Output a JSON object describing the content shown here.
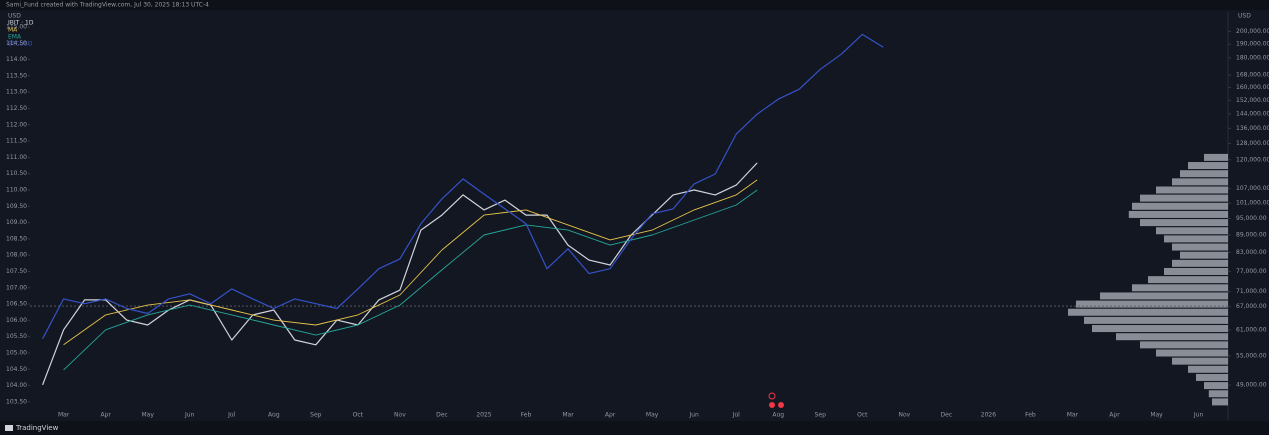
{
  "header": {
    "caption": "Sami_Fund created with TradingView.com, Jul 30, 2025 18:13 UTC-4",
    "left_currency": "USD",
    "right_currency": "USD"
  },
  "footer": {
    "brand": "TradingView"
  },
  "chart_data": {
    "type": "line",
    "x": [
      0.5,
      1,
      1.5,
      2,
      2.5,
      3,
      3.5,
      4,
      4.5,
      5,
      5.5,
      6,
      6.5,
      7,
      7.5,
      8,
      8.5,
      9,
      9.5,
      10,
      10.5,
      11,
      11.5,
      12,
      12.5,
      13,
      13.5,
      14,
      14.5,
      15,
      15.5,
      16,
      16.5,
      17,
      17.5,
      18,
      18.5,
      19,
      19.5,
      20,
      20.5
    ],
    "xlim": [
      0.2,
      28.7
    ],
    "xticks": [
      {
        "value": 1,
        "label": "Mar"
      },
      {
        "value": 2,
        "label": "Apr"
      },
      {
        "value": 3,
        "label": "May"
      },
      {
        "value": 4,
        "label": "Jun"
      },
      {
        "value": 5,
        "label": "Jul"
      },
      {
        "value": 6,
        "label": "Aug"
      },
      {
        "value": 7,
        "label": "Sep"
      },
      {
        "value": 8,
        "label": "Oct"
      },
      {
        "value": 9,
        "label": "Nov"
      },
      {
        "value": 10,
        "label": "Dec"
      },
      {
        "value": 11,
        "label": "2025"
      },
      {
        "value": 12,
        "label": "Feb"
      },
      {
        "value": 13,
        "label": "Mar"
      },
      {
        "value": 14,
        "label": "Apr"
      },
      {
        "value": 15,
        "label": "May"
      },
      {
        "value": 16,
        "label": "Jun"
      },
      {
        "value": 17,
        "label": "Jul"
      },
      {
        "value": 18,
        "label": "Aug"
      },
      {
        "value": 19,
        "label": "Sep"
      },
      {
        "value": 20,
        "label": "Oct"
      },
      {
        "value": 21,
        "label": "Nov"
      },
      {
        "value": 22,
        "label": "Dec"
      },
      {
        "value": 23,
        "label": "2026"
      },
      {
        "value": 24,
        "label": "Feb"
      },
      {
        "value": 25,
        "label": "Mar"
      },
      {
        "value": 26,
        "label": "Apr"
      },
      {
        "value": 27,
        "label": "May"
      },
      {
        "value": 28,
        "label": "Jun"
      }
    ],
    "ylim": [
      103.19,
      115.46
    ],
    "yticks": [
      {
        "value": 115,
        "label": "115.00"
      },
      {
        "value": 114.5,
        "label": "114.50"
      },
      {
        "value": 114,
        "label": "114.00"
      },
      {
        "value": 113.5,
        "label": "113.50"
      },
      {
        "value": 113,
        "label": "113.00"
      },
      {
        "value": 112.5,
        "label": "112.50"
      },
      {
        "value": 112,
        "label": "112.00"
      },
      {
        "value": 111.5,
        "label": "111.50"
      },
      {
        "value": 111,
        "label": "111.00"
      },
      {
        "value": 110.5,
        "label": "110.50"
      },
      {
        "value": 110,
        "label": "110.00"
      },
      {
        "value": 109.5,
        "label": "109.50"
      },
      {
        "value": 109,
        "label": "109.00"
      },
      {
        "value": 108.5,
        "label": "108.50"
      },
      {
        "value": 108,
        "label": "108.00"
      },
      {
        "value": 107.5,
        "label": "107.50"
      },
      {
        "value": 107,
        "label": "107.00"
      },
      {
        "value": 106.5,
        "label": "106.50"
      },
      {
        "value": 106,
        "label": "106.00"
      },
      {
        "value": 105.5,
        "label": "105.50"
      },
      {
        "value": 105,
        "label": "105.00"
      },
      {
        "value": 104.5,
        "label": "104.50"
      },
      {
        "value": 104,
        "label": "104.00"
      },
      {
        "value": 103.5,
        "label": "103.50"
      }
    ],
    "y2lim": [
      44000,
      216000
    ],
    "y2log": true,
    "y2ticks": [
      {
        "value": 200000,
        "label": "200,000.00"
      },
      {
        "value": 190000,
        "label": "190,000.00"
      },
      {
        "value": 180000,
        "label": "180,000.00"
      },
      {
        "value": 168000,
        "label": "168,000.00"
      },
      {
        "value": 160000,
        "label": "160,000.00"
      },
      {
        "value": 152000,
        "label": "152,000.00"
      },
      {
        "value": 144000,
        "label": "144,000.00"
      },
      {
        "value": 136000,
        "label": "136,000.00"
      },
      {
        "value": 128000,
        "label": "128,000.00"
      },
      {
        "value": 120000,
        "label": "120,000.00"
      },
      {
        "value": 107000,
        "label": "107,000.00"
      },
      {
        "value": 101000,
        "label": "101,000.00"
      },
      {
        "value": 95000,
        "label": "95,000.00"
      },
      {
        "value": 89000,
        "label": "89,000.00"
      },
      {
        "value": 83000,
        "label": "83,000.00"
      },
      {
        "value": 77000,
        "label": "77,000.00"
      },
      {
        "value": 71000,
        "label": "71,000.00"
      },
      {
        "value": 67000,
        "label": "67,000.00"
      },
      {
        "value": 61000,
        "label": "61,000.00"
      },
      {
        "value": 55000,
        "label": "55,000.00"
      },
      {
        "value": 49000,
        "label": "49,000.00"
      }
    ],
    "grid": false,
    "hline": 106.44,
    "series": [
      {
        "name": "IBIT · 1D",
        "color": "#d1d4dc",
        "values": [
          104.02,
          105.71,
          106.63,
          106.63,
          106.01,
          105.86,
          106.32,
          106.63,
          106.47,
          105.4,
          106.17,
          106.32,
          105.4,
          105.25,
          106.01,
          105.86,
          106.63,
          106.93,
          108.77,
          109.23,
          109.85,
          109.39,
          109.69,
          109.23,
          109.23,
          108.31,
          107.85,
          107.7,
          108.62,
          109.23,
          109.85,
          110.0,
          109.85,
          110.15,
          110.83,
          null,
          null,
          null,
          null,
          null,
          null
        ]
      },
      {
        "name": "MA",
        "color": "#e6c34a",
        "x": [
          1,
          2,
          3,
          4,
          5,
          6,
          7,
          8,
          9,
          10,
          11,
          12,
          13,
          14,
          15,
          16,
          17,
          17.5
        ],
        "values": [
          105.25,
          106.17,
          106.47,
          106.63,
          106.32,
          106.01,
          105.86,
          106.17,
          106.78,
          108.16,
          109.23,
          109.39,
          108.93,
          108.47,
          108.77,
          109.39,
          109.85,
          110.31
        ]
      },
      {
        "name": "EMA",
        "color": "#26a69a",
        "x": [
          1,
          2,
          3,
          4,
          5,
          6,
          7,
          8,
          9,
          10,
          11,
          12,
          13,
          14,
          15,
          16,
          17,
          17.5
        ],
        "values": [
          104.48,
          105.71,
          106.17,
          106.47,
          106.17,
          105.86,
          105.55,
          105.86,
          106.47,
          107.55,
          108.62,
          108.93,
          108.77,
          108.31,
          108.62,
          109.08,
          109.54,
          110.0
        ]
      },
      {
        "name": "BTCUSD",
        "color": "#3552c8",
        "axis": "y2",
        "values": [
          58900,
          69000,
          67700,
          69000,
          66400,
          65100,
          69000,
          70400,
          67700,
          71800,
          69000,
          66400,
          69000,
          67700,
          66400,
          71800,
          77800,
          80900,
          93000,
          102700,
          111200,
          104700,
          98700,
          93000,
          77800,
          84200,
          76300,
          77800,
          87600,
          96800,
          98700,
          109000,
          113400,
          132900,
          143900,
          152700,
          158900,
          172000,
          182600,
          197600,
          187700
        ]
      }
    ],
    "volume_profile": {
      "color": "#b2b5be",
      "levels": [
        111,
        110.75,
        110.5,
        110.25,
        110,
        109.75,
        109.5,
        109.25,
        109,
        108.75,
        108.5,
        108.25,
        108,
        107.75,
        107.5,
        107.25,
        107,
        106.75,
        106.5,
        106.25,
        106,
        105.75,
        105.5,
        105.25,
        105,
        104.75,
        104.5,
        104.25,
        104,
        103.75,
        103.5
      ],
      "values": [
        15,
        25,
        30,
        35,
        45,
        55,
        60,
        62,
        55,
        45,
        40,
        35,
        30,
        35,
        40,
        50,
        60,
        80,
        95,
        100,
        90,
        85,
        70,
        55,
        45,
        35,
        25,
        20,
        15,
        12,
        10
      ]
    }
  }
}
